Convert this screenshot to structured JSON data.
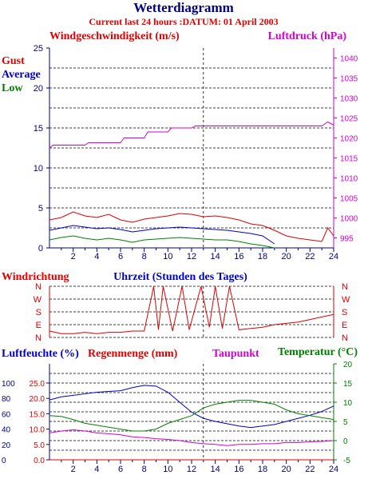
{
  "header": {
    "title": "Wetterdiagramm",
    "subtitle": "Current last 24 hours :DATUM: 01 April 2003"
  },
  "colors": {
    "red": "#e00000",
    "blue": "#0000c8",
    "green": "#008000",
    "magenta": "#d400d4",
    "navy": "#000080",
    "grid": "#000000"
  },
  "chart_data": [
    {
      "id": "wind",
      "type": "line",
      "title": "Windgeschwindigkeit (m/s)",
      "ylabel_right": "Luftdruck (hPa)",
      "legend": [
        "Gust",
        "Average",
        "Low"
      ],
      "x_ticks": [
        2,
        4,
        6,
        8,
        10,
        12,
        14,
        16,
        18,
        20,
        22,
        24
      ],
      "xlim": [
        0,
        24
      ],
      "ylim": [
        0,
        25
      ],
      "y_ticks": [
        0,
        5,
        10,
        15,
        20,
        25
      ],
      "y2lim": [
        992.5,
        1042.5
      ],
      "y2_ticks": [
        995,
        1000,
        1005,
        1010,
        1015,
        1020,
        1025,
        1030,
        1035,
        1040
      ],
      "series": [
        {
          "name": "Gust",
          "color": "#e00000",
          "x": [
            0,
            1,
            2,
            3,
            4,
            5,
            6,
            7,
            8,
            9,
            10,
            11,
            12,
            13,
            14,
            15,
            16,
            17,
            18,
            19,
            20,
            21,
            22,
            23,
            23.5,
            24
          ],
          "values": [
            3.5,
            3.8,
            4.5,
            4.0,
            3.8,
            4.2,
            3.5,
            3.2,
            3.6,
            3.8,
            4.0,
            4.3,
            4.2,
            3.9,
            4.0,
            3.8,
            3.5,
            3.0,
            2.8,
            2.2,
            1.5,
            1.2,
            1.0,
            0.8,
            2.5,
            1.5
          ]
        },
        {
          "name": "Average",
          "color": "#0000c8",
          "x": [
            0,
            1,
            2,
            3,
            4,
            5,
            6,
            7,
            8,
            9,
            10,
            11,
            12,
            13,
            14,
            15,
            16,
            17,
            18,
            19
          ],
          "values": [
            2.2,
            2.5,
            2.8,
            2.6,
            2.4,
            2.5,
            2.3,
            2.0,
            2.2,
            2.4,
            2.5,
            2.6,
            2.5,
            2.4,
            2.3,
            2.2,
            2.0,
            1.8,
            1.5,
            0.5
          ]
        },
        {
          "name": "Low",
          "color": "#008000",
          "x": [
            0,
            1,
            2,
            3,
            4,
            5,
            6,
            7,
            8,
            9,
            10,
            11,
            12,
            13,
            14,
            15,
            16,
            17,
            18,
            19
          ],
          "values": [
            1.0,
            1.3,
            1.5,
            1.2,
            1.0,
            1.2,
            1.0,
            0.7,
            1.0,
            1.1,
            1.2,
            1.3,
            1.2,
            1.1,
            1.0,
            1.0,
            0.8,
            0.5,
            0.3,
            0.0
          ]
        },
        {
          "name": "Luftdruck",
          "axis": "right",
          "color": "#d400d4",
          "x": [
            0,
            0.3,
            3,
            3.3,
            6,
            6.3,
            8,
            8.3,
            10,
            10.3,
            12,
            12.3,
            23,
            23.5,
            24
          ],
          "values": [
            1017.5,
            1018.2,
            1018.2,
            1018.8,
            1018.8,
            1020,
            1020,
            1021.5,
            1021.5,
            1022.5,
            1022.5,
            1023,
            1023,
            1024,
            1023.2
          ]
        }
      ]
    },
    {
      "id": "direction",
      "type": "line",
      "title": "Windrichtung",
      "xlabel": "Uhrzeit (Stunden des Tages)",
      "y_categories": [
        "N",
        "W",
        "S",
        "E",
        "N"
      ],
      "xlim": [
        0,
        24
      ],
      "series": [
        {
          "name": "Windrichtung",
          "color": "#e00000",
          "x": [
            0,
            1,
            2,
            3,
            4,
            5,
            6,
            7,
            8,
            8.8,
            9.2,
            9.6,
            10.4,
            11.2,
            11.8,
            12.8,
            13.5,
            14,
            14.6,
            15.2,
            16,
            17,
            18,
            19,
            20,
            21,
            22,
            23,
            24
          ],
          "values": [
            0.5,
            0.3,
            0.3,
            0.4,
            0.3,
            0.4,
            0.4,
            0.5,
            0.5,
            4,
            0.6,
            4,
            0.5,
            4,
            0.6,
            4,
            0.8,
            4,
            0.7,
            4,
            0.6,
            0.7,
            0.8,
            1.0,
            1.1,
            1.2,
            1.4,
            1.6,
            1.8
          ],
          "note": "values in direction index 0=N,1=E,2=S,3=W,4=N"
        }
      ]
    },
    {
      "id": "humidity",
      "type": "line",
      "title_humidity": "Luftfeuchte (%)",
      "title_rain": "Regenmenge (mm)",
      "title_dew": "Taupunkt",
      "title_temp": "Temperatur (°C)",
      "x_ticks": [
        2,
        4,
        6,
        8,
        10,
        12,
        14,
        16,
        18,
        20,
        22,
        24
      ],
      "xlim": [
        0,
        24
      ],
      "y_humidity_ticks": [
        0,
        20,
        40,
        60,
        80,
        100
      ],
      "y_rain_ticks": [
        "0.0",
        "5.0",
        "10.0",
        "15.0",
        "20.0",
        "25.0"
      ],
      "ylim_humidity": [
        0,
        125
      ],
      "y_temp_ticks": [
        -5,
        0,
        5,
        10,
        15,
        20
      ],
      "ylim_temp": [
        -5,
        20
      ],
      "series": [
        {
          "name": "Luftfeuchte",
          "color": "#0000c8",
          "axis": "humidity",
          "x": [
            0,
            1,
            2,
            3,
            4,
            5,
            6,
            7,
            8,
            9,
            10,
            11,
            12,
            13,
            14,
            15,
            16,
            17,
            18,
            19,
            20,
            21,
            22,
            23,
            24
          ],
          "values": [
            78,
            82,
            84,
            86,
            88,
            89,
            90,
            94,
            97,
            96,
            88,
            75,
            62,
            54,
            50,
            47,
            44,
            42,
            44,
            46,
            50,
            54,
            58,
            63,
            70
          ]
        },
        {
          "name": "Temperatur",
          "color": "#008000",
          "axis": "temp",
          "x": [
            0,
            1,
            2,
            3,
            4,
            5,
            6,
            7,
            8,
            9,
            10,
            11,
            12,
            13,
            14,
            15,
            16,
            17,
            18,
            19,
            20,
            21,
            22,
            23,
            24
          ],
          "values": [
            6.5,
            6.3,
            5.5,
            4.5,
            4.0,
            3.5,
            3.0,
            2.5,
            2.5,
            3.0,
            4.5,
            5.5,
            6.5,
            8.5,
            9.5,
            10.0,
            10.5,
            10.5,
            10.0,
            9.5,
            8.0,
            7.0,
            6.5,
            6.0,
            5.5
          ]
        },
        {
          "name": "Taupunkt",
          "color": "#d400d4",
          "axis": "temp",
          "x": [
            0,
            1,
            2,
            3,
            4,
            5,
            6,
            7,
            8,
            9,
            10,
            11,
            12,
            13,
            14,
            15,
            16,
            17,
            18,
            19,
            20,
            21,
            22,
            23,
            24
          ],
          "values": [
            2.0,
            2.5,
            2.8,
            2.5,
            2.0,
            1.8,
            1.5,
            1.0,
            0.8,
            0.5,
            0.3,
            0.0,
            -0.5,
            -0.8,
            -1.0,
            -1.3,
            -1.0,
            -1.0,
            -0.8,
            -0.8,
            -0.5,
            -0.5,
            -0.3,
            -0.2,
            0.0
          ]
        },
        {
          "name": "Regenmenge",
          "color": "#e00000",
          "axis": "rain",
          "x": [
            0,
            24
          ],
          "values": [
            0,
            0
          ]
        }
      ]
    }
  ]
}
